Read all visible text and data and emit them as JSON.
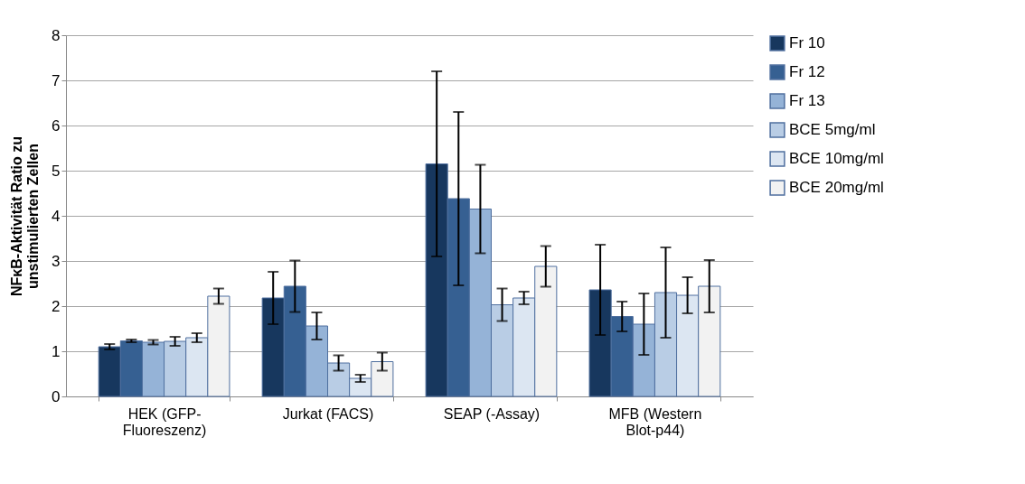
{
  "chart_data": {
    "type": "bar",
    "ylabel": "NFκB-Aktivität Ratio zu\nunstimulierten Zellen",
    "categories": [
      "HEK (GFP-\nFluoreszenz)",
      "Jurkat (FACS)",
      "SEAP (-Assay)",
      "MFB (Western\nBlot-p44)"
    ],
    "series": [
      {
        "name": "Fr 10",
        "color": "#17375e",
        "values": [
          1.1,
          2.18,
          5.15,
          2.36
        ],
        "errors": [
          0.06,
          0.58,
          2.05,
          1.0
        ]
      },
      {
        "name": "Fr 12",
        "color": "#366092",
        "values": [
          1.23,
          2.44,
          4.38,
          1.77
        ],
        "errors": [
          0.03,
          0.57,
          1.92,
          0.33
        ]
      },
      {
        "name": "Fr 13",
        "color": "#95b3d7",
        "values": [
          1.2,
          1.56,
          4.15,
          1.6
        ],
        "errors": [
          0.05,
          0.3,
          0.98,
          0.68
        ]
      },
      {
        "name": "BCE 5mg/ml",
        "color": "#b9cde5",
        "values": [
          1.22,
          0.74,
          2.03,
          2.3
        ],
        "errors": [
          0.1,
          0.17,
          0.36,
          1.0
        ]
      },
      {
        "name": "BCE 10mg/ml",
        "color": "#dce6f2",
        "values": [
          1.3,
          0.4,
          2.18,
          2.24
        ],
        "errors": [
          0.1,
          0.08,
          0.14,
          0.4
        ]
      },
      {
        "name": "BCE 20mg/ml",
        "color": "#f2f2f2",
        "values": [
          2.22,
          0.77,
          2.88,
          2.44
        ],
        "errors": [
          0.17,
          0.2,
          0.45,
          0.58
        ]
      }
    ],
    "ylim": [
      0,
      8
    ],
    "yticks": [
      0,
      1,
      2,
      3,
      4,
      5,
      6,
      7,
      8
    ],
    "grid": "y",
    "legend": "right"
  }
}
